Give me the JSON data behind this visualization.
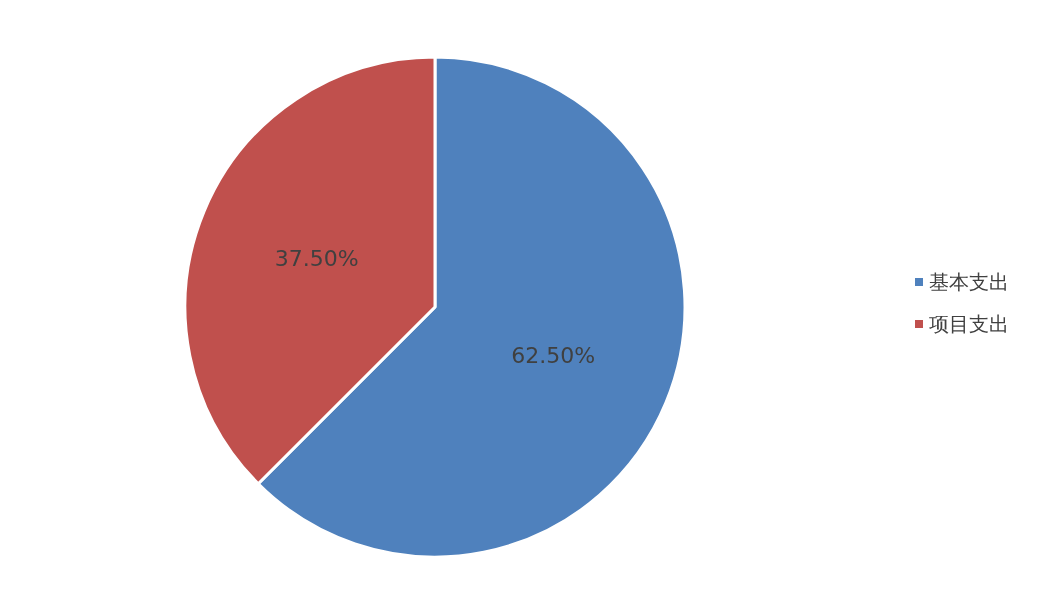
{
  "chart_data": {
    "type": "pie",
    "categories": [
      "基本支出",
      "项目支出"
    ],
    "values": [
      62.5,
      37.5
    ],
    "colors": [
      "#4f81bd",
      "#c0504d"
    ],
    "value_labels": [
      "62.50%",
      "37.50%"
    ],
    "legend": "right"
  }
}
